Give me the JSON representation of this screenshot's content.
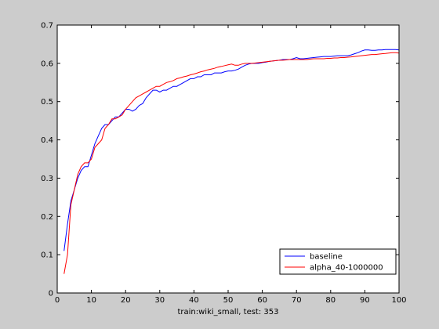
{
  "chart_data": {
    "type": "line",
    "title": "",
    "xlabel": "train:wiki_small, test: 353",
    "ylabel": "",
    "xlim": [
      0,
      100
    ],
    "ylim": [
      0,
      0.7
    ],
    "xticks": [
      "0",
      "10",
      "20",
      "30",
      "40",
      "50",
      "60",
      "70",
      "80",
      "90",
      "100"
    ],
    "yticks": [
      "0",
      "0.1",
      "0.2",
      "0.3",
      "0.4",
      "0.5",
      "0.6",
      "0.7"
    ],
    "grid": false,
    "legend_position": "bottom-right",
    "background": "#cccccc",
    "plot_background": "#ffffff",
    "series": [
      {
        "name": "baseline",
        "color": "#0000ff",
        "x": [
          2,
          3,
          4,
          5,
          6,
          7,
          8,
          9,
          10,
          11,
          12,
          13,
          14,
          15,
          16,
          17,
          18,
          19,
          20,
          21,
          22,
          23,
          24,
          25,
          26,
          27,
          28,
          29,
          30,
          31,
          32,
          33,
          34,
          35,
          36,
          37,
          38,
          39,
          40,
          41,
          42,
          43,
          44,
          45,
          46,
          47,
          48,
          49,
          50,
          51,
          52,
          53,
          54,
          55,
          56,
          57,
          58,
          59,
          60,
          61,
          62,
          63,
          64,
          65,
          66,
          67,
          68,
          69,
          70,
          71,
          72,
          73,
          74,
          75,
          76,
          77,
          78,
          79,
          80,
          81,
          82,
          83,
          84,
          85,
          86,
          87,
          88,
          89,
          90,
          91,
          92,
          93,
          94,
          95,
          96,
          97,
          98,
          99,
          100
        ],
        "y": [
          0.11,
          0.18,
          0.24,
          0.27,
          0.3,
          0.32,
          0.33,
          0.33,
          0.36,
          0.39,
          0.41,
          0.43,
          0.44,
          0.44,
          0.45,
          0.46,
          0.46,
          0.47,
          0.48,
          0.48,
          0.475,
          0.48,
          0.49,
          0.495,
          0.51,
          0.52,
          0.53,
          0.53,
          0.525,
          0.53,
          0.53,
          0.535,
          0.54,
          0.54,
          0.545,
          0.55,
          0.555,
          0.56,
          0.56,
          0.565,
          0.565,
          0.57,
          0.57,
          0.57,
          0.575,
          0.575,
          0.575,
          0.578,
          0.58,
          0.58,
          0.582,
          0.585,
          0.59,
          0.595,
          0.598,
          0.6,
          0.6,
          0.6,
          0.602,
          0.603,
          0.605,
          0.606,
          0.607,
          0.608,
          0.61,
          0.61,
          0.61,
          0.612,
          0.615,
          0.612,
          0.612,
          0.613,
          0.614,
          0.615,
          0.616,
          0.617,
          0.618,
          0.618,
          0.618,
          0.619,
          0.62,
          0.62,
          0.62,
          0.62,
          0.622,
          0.625,
          0.628,
          0.632,
          0.635,
          0.635,
          0.634,
          0.634,
          0.635,
          0.635,
          0.636,
          0.636,
          0.636,
          0.636,
          0.635
        ]
      },
      {
        "name": "alpha_40-1000000",
        "color": "#ff0000",
        "x": [
          2,
          3,
          4,
          5,
          6,
          7,
          8,
          9,
          10,
          11,
          12,
          13,
          14,
          15,
          16,
          17,
          18,
          19,
          20,
          21,
          22,
          23,
          24,
          25,
          26,
          27,
          28,
          29,
          30,
          31,
          32,
          33,
          34,
          35,
          36,
          37,
          38,
          39,
          40,
          41,
          42,
          43,
          44,
          45,
          46,
          47,
          48,
          49,
          50,
          51,
          52,
          53,
          54,
          55,
          56,
          57,
          58,
          59,
          60,
          61,
          62,
          63,
          64,
          65,
          66,
          67,
          68,
          69,
          70,
          71,
          72,
          73,
          74,
          75,
          76,
          77,
          78,
          79,
          80,
          81,
          82,
          83,
          84,
          85,
          86,
          87,
          88,
          89,
          90,
          91,
          92,
          93,
          94,
          95,
          96,
          97,
          98,
          99,
          100
        ],
        "y": [
          0.05,
          0.1,
          0.23,
          0.27,
          0.31,
          0.33,
          0.34,
          0.34,
          0.35,
          0.38,
          0.39,
          0.4,
          0.43,
          0.44,
          0.455,
          0.455,
          0.46,
          0.465,
          0.48,
          0.49,
          0.5,
          0.51,
          0.515,
          0.52,
          0.525,
          0.53,
          0.535,
          0.54,
          0.54,
          0.545,
          0.55,
          0.552,
          0.555,
          0.56,
          0.562,
          0.565,
          0.567,
          0.57,
          0.572,
          0.575,
          0.578,
          0.58,
          0.583,
          0.585,
          0.587,
          0.59,
          0.592,
          0.594,
          0.596,
          0.598,
          0.595,
          0.595,
          0.598,
          0.6,
          0.6,
          0.6,
          0.601,
          0.602,
          0.603,
          0.604,
          0.605,
          0.606,
          0.607,
          0.608,
          0.608,
          0.609,
          0.61,
          0.61,
          0.61,
          0.61,
          0.61,
          0.61,
          0.611,
          0.612,
          0.612,
          0.612,
          0.612,
          0.613,
          0.613,
          0.614,
          0.614,
          0.615,
          0.615,
          0.616,
          0.617,
          0.618,
          0.619,
          0.62,
          0.621,
          0.622,
          0.623,
          0.623,
          0.624,
          0.625,
          0.626,
          0.627,
          0.628,
          0.628,
          0.627
        ]
      }
    ]
  }
}
